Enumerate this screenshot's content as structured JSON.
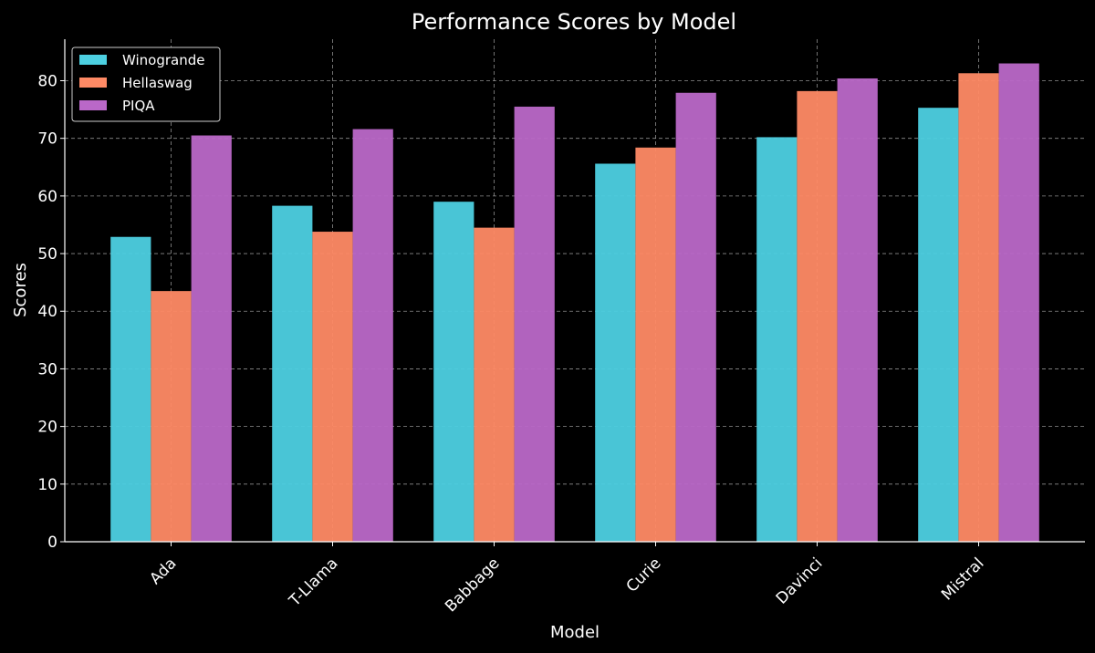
{
  "chart_data": {
    "type": "bar",
    "title": "Performance Scores by Model",
    "xlabel": "Model",
    "ylabel": "Scores",
    "categories": [
      "Ada",
      "T-Llama",
      "Babbage",
      "Curie",
      "Davinci",
      "Mistral"
    ],
    "series": [
      {
        "name": "Winogrande",
        "color": "#4dd0e1",
        "values": [
          52.9,
          58.3,
          59.0,
          65.6,
          70.2,
          75.3
        ]
      },
      {
        "name": "Hellaswag",
        "color": "#ff8a65",
        "values": [
          43.5,
          53.8,
          54.5,
          68.4,
          78.2,
          81.3
        ]
      },
      {
        "name": "PIQA",
        "color": "#ba68c8",
        "values": [
          70.5,
          71.6,
          75.5,
          77.9,
          80.4,
          83.0
        ]
      }
    ],
    "yticks": [
      "0",
      "10",
      "20",
      "30",
      "40",
      "50",
      "60",
      "70",
      "80"
    ],
    "ylim": [
      0,
      87.2
    ],
    "grid": true,
    "legend_position": "top-left"
  }
}
